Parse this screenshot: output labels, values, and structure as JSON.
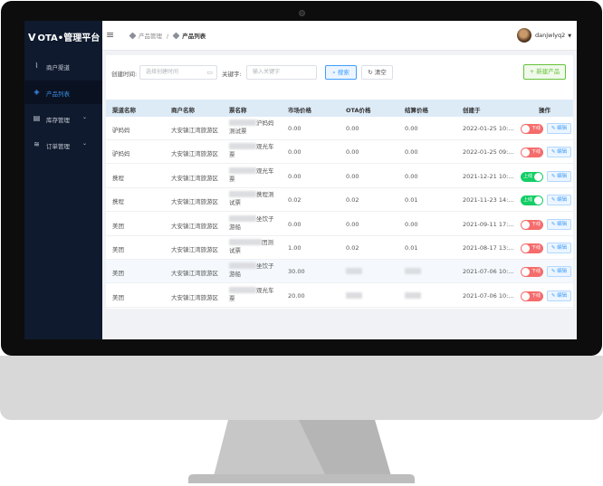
{
  "app": {
    "logo_mark": "V",
    "title": "OTA•管理平台"
  },
  "sidebar": {
    "items": [
      {
        "label": "商户渠道",
        "icon": "rss-icon",
        "glyph": "⌇",
        "active": false,
        "has_arrow": false
      },
      {
        "label": "产品列表",
        "icon": "cube-icon",
        "glyph": "◈",
        "active": true,
        "has_arrow": false
      },
      {
        "label": "库存管理",
        "icon": "inventory-icon",
        "glyph": "▤",
        "active": false,
        "has_arrow": true
      },
      {
        "label": "订单管理",
        "icon": "layers-icon",
        "glyph": "≋",
        "active": false,
        "has_arrow": true
      }
    ],
    "arrow": "⌄"
  },
  "header": {
    "collapse_icon": "≡",
    "breadcrumb": [
      "产品管理",
      "产品列表"
    ],
    "breadcrumb_sep": "/",
    "username": "danjwlyq2",
    "caret": "▼"
  },
  "filters": {
    "created_label": "创建时间:",
    "date_placeholder": "选择创建时间",
    "keyword_label": "关键字:",
    "keyword_placeholder": "输入关键字",
    "search_label": "搜索",
    "clear_label": "清空",
    "new_label": "新建产品",
    "search_icon": "⌕",
    "clear_icon": "↻",
    "new_icon": "+",
    "calendar_icon": "▭"
  },
  "table": {
    "columns": [
      "渠道名称",
      "商户名称",
      "票名称",
      "市场价格",
      "OTA价格",
      "结算价格",
      "创建于",
      "操作"
    ],
    "rows": [
      {
        "channel": "驴妈妈",
        "merchant": "大安镇江湾旅游区",
        "ticket_l1": "沪妈妈",
        "ticket_l2": "测试票",
        "market": "0.00",
        "ota": "0.00",
        "settle": "0.00",
        "created": "2022-01-25 10:...",
        "status": "下线",
        "on": false
      },
      {
        "channel": "驴妈妈",
        "merchant": "大安镇江湾旅游区",
        "ticket_l1": "观光车",
        "ticket_l2": "票",
        "market": "0.00",
        "ota": "0.00",
        "settle": "0.00",
        "created": "2022-01-25 09:...",
        "status": "下线",
        "on": false
      },
      {
        "channel": "携程",
        "merchant": "大安镇江湾旅游区",
        "ticket_l1": "观光车",
        "ticket_l2": "票",
        "market": "0.00",
        "ota": "0.00",
        "settle": "0.00",
        "created": "2021-12-21 10:...",
        "status": "上线",
        "on": true
      },
      {
        "channel": "携程",
        "merchant": "大安镇江湾旅游区",
        "ticket_l1": "携程测",
        "ticket_l2": "试票",
        "market": "0.02",
        "ota": "0.02",
        "settle": "0.01",
        "created": "2021-11-23 14:...",
        "status": "上线",
        "on": true
      },
      {
        "channel": "美团",
        "merchant": "大安镇江湾旅游区",
        "ticket_l1": "坐饮子",
        "ticket_l2": "游船",
        "market": "0.00",
        "ota": "0.00",
        "settle": "0.00",
        "created": "2021-09-11 17:...",
        "status": "下线",
        "on": false
      },
      {
        "channel": "美团",
        "merchant": "大安镇江湾旅游区",
        "ticket_l1": "团测",
        "ticket_l2": "试票",
        "market": "1.00",
        "ota": "0.02",
        "settle": "0.01",
        "created": "2021-08-17 13:...",
        "status": "下线",
        "on": false
      },
      {
        "channel": "美团",
        "merchant": "大安镇江湾旅游区",
        "ticket_l1": "坐饮子",
        "ticket_l2": "游船",
        "market": "30.00",
        "ota": "",
        "settle": "",
        "created": "2021-07-06 10:...",
        "status": "下线",
        "on": false
      },
      {
        "channel": "美团",
        "merchant": "大安镇江湾旅游区",
        "ticket_l1": "观光车",
        "ticket_l2": "票",
        "market": "20.00",
        "ota": "",
        "settle": "",
        "created": "2021-07-06 10:...",
        "status": "下线",
        "on": false
      }
    ],
    "edit_label": "编辑",
    "edit_icon": "✎",
    "highlight_row": 6
  },
  "colors": {
    "sidebar_bg": "#0f1a2e",
    "accent": "#409eff",
    "success": "#13ce66",
    "danger": "#f56c6c",
    "table_header": "#ddebf7"
  }
}
